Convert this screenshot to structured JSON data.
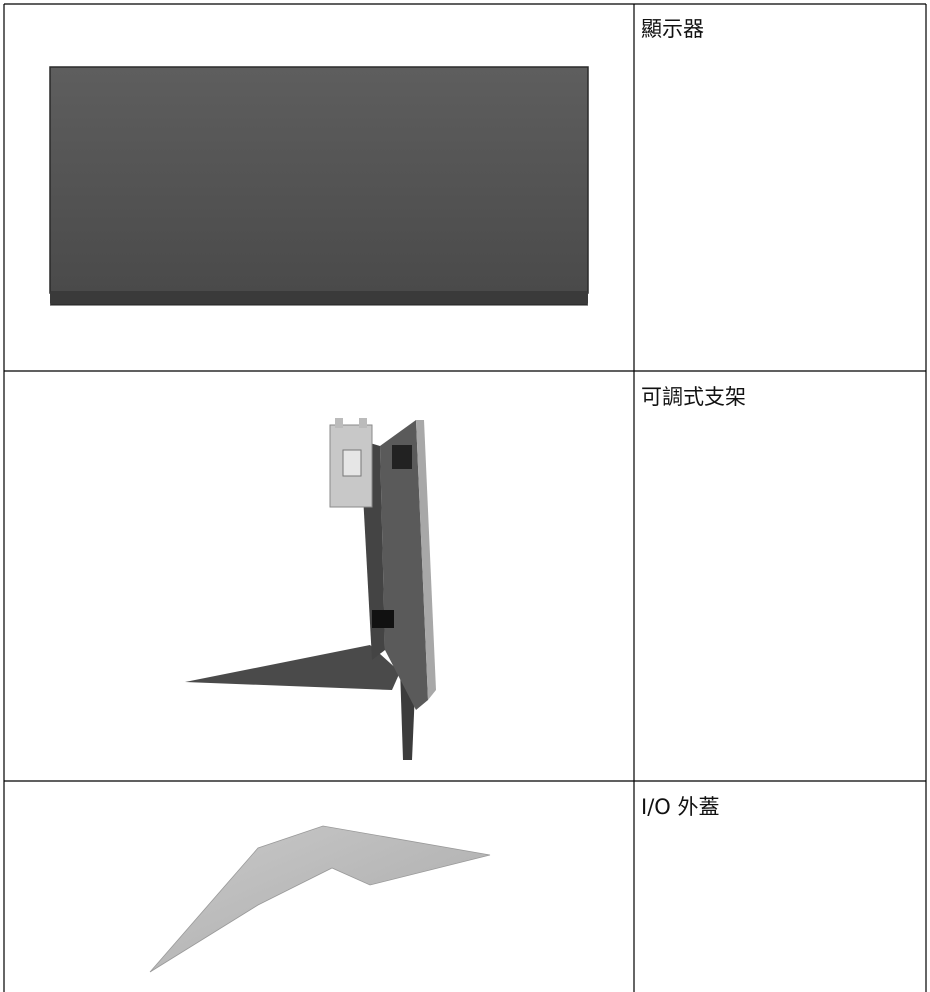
{
  "table": {
    "rows": [
      {
        "label": "顯示器"
      },
      {
        "label": "可調式支架"
      },
      {
        "label": "I/O 外蓋"
      }
    ]
  }
}
